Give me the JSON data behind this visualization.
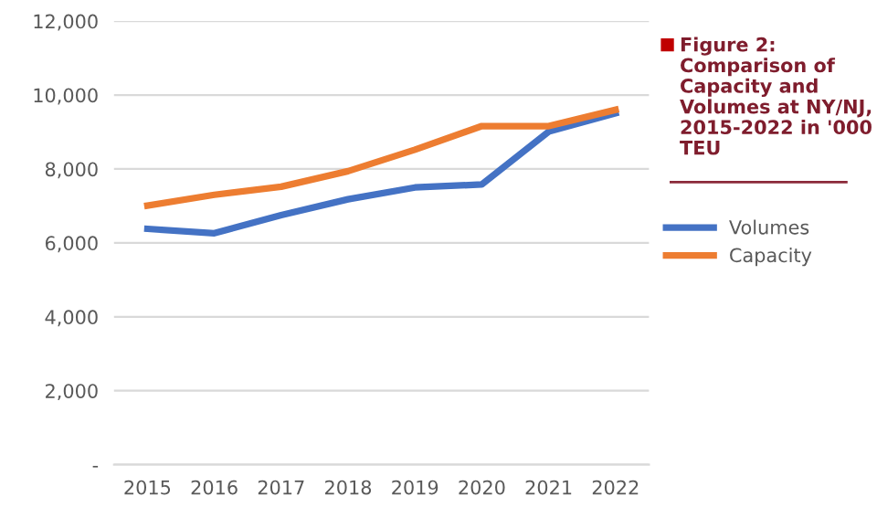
{
  "chart_data": {
    "type": "line",
    "title": "Figure 2: Comparison of Capacity and Volumes at NY/NJ, 2015-2022 in '000 TEU",
    "categories": [
      "2015",
      "2016",
      "2017",
      "2018",
      "2019",
      "2020",
      "2021",
      "2022"
    ],
    "series": [
      {
        "name": "Volumes",
        "color": "#4472c4",
        "values": [
          6380,
          6260,
          6750,
          7180,
          7500,
          7580,
          9010,
          9510
        ]
      },
      {
        "name": "Capacity",
        "color": "#ed7d31",
        "values": [
          7010,
          7300,
          7520,
          7940,
          8520,
          9160,
          9160,
          9600
        ]
      }
    ],
    "ylim": [
      0,
      12000
    ],
    "yticks": [
      {
        "value": 0,
        "label": "-"
      },
      {
        "value": 2000,
        "label": "2,000"
      },
      {
        "value": 4000,
        "label": "4,000"
      },
      {
        "value": 6000,
        "label": "6,000"
      },
      {
        "value": 8000,
        "label": "8,000"
      },
      {
        "value": 10000,
        "label": "10,000"
      },
      {
        "value": 12000,
        "label": "12,000"
      }
    ],
    "grid": "y",
    "legend": "right",
    "marker": "none",
    "line_style": "solid"
  }
}
